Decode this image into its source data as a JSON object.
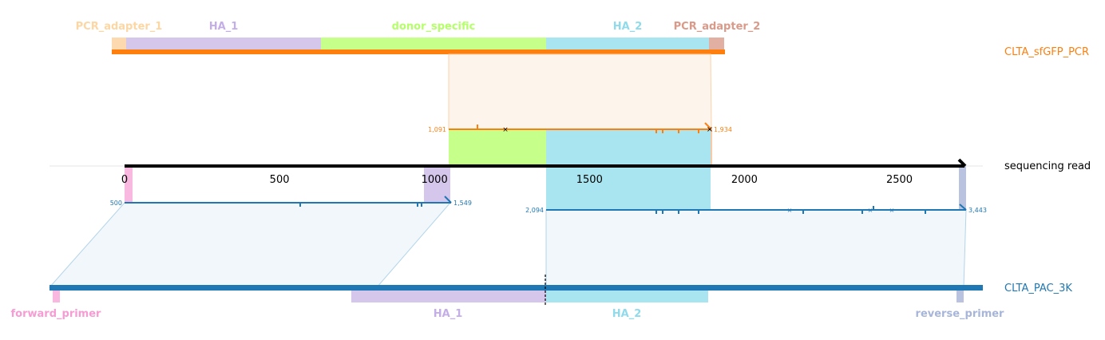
{
  "colors": {
    "orange": "#ff7f0e",
    "blue": "#1f77b4",
    "black": "#000000",
    "pcr_adapter_1": "#fdd9b0",
    "ha_1": "#d5c7ec",
    "donor_specific": "#c6ff8a",
    "ha_2": "#a9e5f0",
    "pcr_adapter_2": "#e2b0a3",
    "forward_primer": "#f9b8e0",
    "reverse_primer": "#b9c3e0",
    "ha1_label": "#c4aee8",
    "ha2_label": "#8fdbeb",
    "donor_label": "#b5ff6a",
    "pcr1_label": "#fcd7a4",
    "pcr2_label": "#d99a8a",
    "fwd_label": "#f79bd3",
    "rev_label": "#a7b5d9"
  },
  "top_sequence": {
    "name": "CLTA_sfGFP_PCR",
    "features": [
      {
        "label": "PCR_adapter_1",
        "color_key": "pcr_adapter_1",
        "label_color_key": "pcr1_label"
      },
      {
        "label": "HA_1",
        "color_key": "ha_1",
        "label_color_key": "ha1_label"
      },
      {
        "label": "donor_specific",
        "color_key": "donor_specific",
        "label_color_key": "donor_label"
      },
      {
        "label": "HA_2",
        "color_key": "ha_2",
        "label_color_key": "ha2_label"
      },
      {
        "label": "PCR_adapter_2",
        "color_key": "pcr_adapter_2",
        "label_color_key": "pcr2_label"
      }
    ]
  },
  "read": {
    "name": "sequencing read",
    "ticks": [
      "0",
      "500",
      "1000",
      "1500",
      "2000",
      "2500"
    ],
    "tick_values": [
      0,
      500,
      1000,
      1500,
      2000,
      2500
    ],
    "length": 2700
  },
  "top_alignment": {
    "ref_start_label": "1,091",
    "ref_end_label": "1,934",
    "read_start": 1050,
    "read_end": 1900
  },
  "bottom_alignments": [
    {
      "start_label": "500",
      "end_label": "1,549",
      "read_start": 0,
      "read_end": 1050
    },
    {
      "start_label": "2,094",
      "end_label": "3,443",
      "read_start": 1360,
      "read_end": 2700
    }
  ],
  "bottom_sequence": {
    "name": "CLTA_PAC_3K",
    "features": [
      {
        "label": "forward_primer",
        "color_key": "forward_primer",
        "label_color_key": "fwd_label"
      },
      {
        "label": "HA_1",
        "color_key": "ha_1",
        "label_color_key": "ha1_label"
      },
      {
        "label": "HA_2",
        "color_key": "ha_2",
        "label_color_key": "ha2_label"
      },
      {
        "label": "reverse_primer",
        "color_key": "reverse_primer",
        "label_color_key": "rev_label"
      }
    ]
  }
}
